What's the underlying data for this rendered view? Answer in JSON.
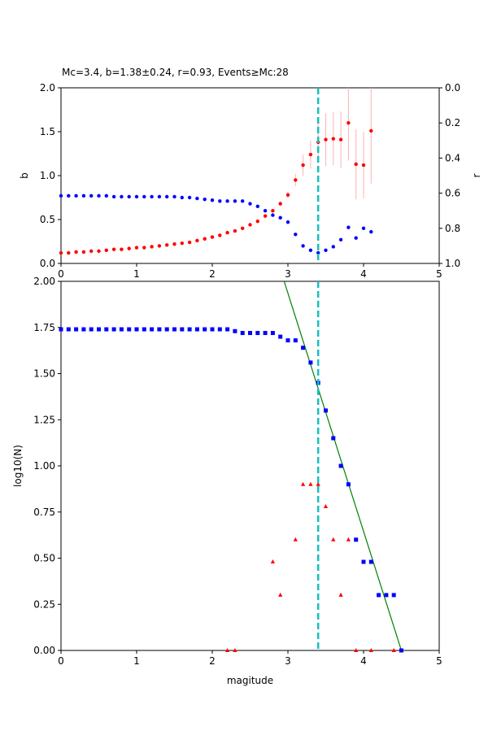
{
  "chart_data": [
    {
      "type": "scatter",
      "title": "Mc=3.4, b=1.38±0.24, r=0.93, Events≥Mc:28",
      "xlabel": "",
      "ylabel": "b",
      "ylabel_right": "r",
      "xlim": [
        0,
        5
      ],
      "ylim": [
        0,
        2
      ],
      "ylim_right": [
        1,
        0
      ],
      "x_ticks": [
        "0",
        "1",
        "2",
        "3",
        "4",
        "5"
      ],
      "y_ticks": [
        "0.0",
        "0.5",
        "1.0",
        "1.5",
        "2.0"
      ],
      "y_ticks_right": [
        "0.0",
        "0.2",
        "0.4",
        "0.6",
        "0.8",
        "1.0"
      ],
      "mc_line_x": 3.4,
      "series": [
        {
          "axis": "left",
          "color": "#ff0000",
          "marker": "circle",
          "x": [
            0.0,
            0.1,
            0.2,
            0.3,
            0.4,
            0.5,
            0.6,
            0.7,
            0.8,
            0.9,
            1.0,
            1.1,
            1.2,
            1.3,
            1.4,
            1.5,
            1.6,
            1.7,
            1.8,
            1.9,
            2.0,
            2.1,
            2.2,
            2.3,
            2.4,
            2.5,
            2.6,
            2.7,
            2.8,
            2.9,
            3.0,
            3.1,
            3.2,
            3.3,
            3.4,
            3.5,
            3.6,
            3.7,
            3.8,
            3.9,
            4.0,
            4.1
          ],
          "y": [
            0.12,
            0.12,
            0.13,
            0.13,
            0.14,
            0.14,
            0.15,
            0.16,
            0.16,
            0.17,
            0.18,
            0.18,
            0.19,
            0.2,
            0.21,
            0.22,
            0.23,
            0.24,
            0.26,
            0.28,
            0.3,
            0.32,
            0.35,
            0.37,
            0.4,
            0.44,
            0.48,
            0.54,
            0.6,
            0.68,
            0.78,
            0.95,
            1.12,
            1.24,
            1.38,
            1.41,
            1.42,
            1.41,
            1.6,
            1.13,
            1.12,
            1.51
          ],
          "err": [
            0,
            0,
            0,
            0,
            0,
            0,
            0,
            0,
            0,
            0,
            0,
            0,
            0,
            0,
            0,
            0,
            0,
            0,
            0,
            0,
            0,
            0,
            0,
            0,
            0,
            0,
            0,
            0,
            0.02,
            0.03,
            0.04,
            0.07,
            0.12,
            0.16,
            0.24,
            0.3,
            0.3,
            0.32,
            0.43,
            0.4,
            0.38,
            0.6
          ]
        },
        {
          "axis": "right",
          "color": "#0000ff",
          "marker": "circle",
          "x": [
            0.0,
            0.1,
            0.2,
            0.3,
            0.4,
            0.5,
            0.6,
            0.7,
            0.8,
            0.9,
            1.0,
            1.1,
            1.2,
            1.3,
            1.4,
            1.5,
            1.6,
            1.7,
            1.8,
            1.9,
            2.0,
            2.1,
            2.2,
            2.3,
            2.4,
            2.5,
            2.6,
            2.7,
            2.8,
            2.9,
            3.0,
            3.1,
            3.2,
            3.3,
            3.4,
            3.5,
            3.6,
            3.7,
            3.8,
            3.9,
            4.0,
            4.1
          ],
          "y": [
            0.615,
            0.615,
            0.615,
            0.615,
            0.615,
            0.615,
            0.615,
            0.62,
            0.62,
            0.62,
            0.62,
            0.62,
            0.62,
            0.62,
            0.62,
            0.62,
            0.625,
            0.625,
            0.63,
            0.635,
            0.64,
            0.645,
            0.645,
            0.645,
            0.645,
            0.66,
            0.675,
            0.7,
            0.725,
            0.74,
            0.765,
            0.835,
            0.9,
            0.925,
            0.94,
            0.925,
            0.905,
            0.865,
            0.795,
            0.855,
            0.8,
            0.82
          ]
        }
      ]
    },
    {
      "type": "scatter",
      "title": "",
      "xlabel": "magitude",
      "ylabel": "log10(N)",
      "xlim": [
        0,
        5
      ],
      "ylim": [
        0,
        2
      ],
      "x_ticks": [
        "0",
        "1",
        "2",
        "3",
        "4",
        "5"
      ],
      "y_ticks": [
        "0.00",
        "0.25",
        "0.50",
        "0.75",
        "1.00",
        "1.25",
        "1.50",
        "1.75",
        "2.00"
      ],
      "mc_line_x": 3.4,
      "fit_line": {
        "x": [
          2.95,
          4.5
        ],
        "y": [
          2.0,
          0.0
        ],
        "color": "#008000"
      },
      "series": [
        {
          "color": "#0000ff",
          "marker": "square",
          "x": [
            0.0,
            0.1,
            0.2,
            0.3,
            0.4,
            0.5,
            0.6,
            0.7,
            0.8,
            0.9,
            1.0,
            1.1,
            1.2,
            1.3,
            1.4,
            1.5,
            1.6,
            1.7,
            1.8,
            1.9,
            2.0,
            2.1,
            2.2,
            2.3,
            2.4,
            2.5,
            2.6,
            2.7,
            2.8,
            2.9,
            3.0,
            3.1,
            3.2,
            3.3,
            3.4,
            3.5,
            3.6,
            3.7,
            3.8,
            3.9,
            4.0,
            4.1,
            4.2,
            4.3,
            4.4,
            4.5
          ],
          "y": [
            1.74,
            1.74,
            1.74,
            1.74,
            1.74,
            1.74,
            1.74,
            1.74,
            1.74,
            1.74,
            1.74,
            1.74,
            1.74,
            1.74,
            1.74,
            1.74,
            1.74,
            1.74,
            1.74,
            1.74,
            1.74,
            1.74,
            1.74,
            1.73,
            1.72,
            1.72,
            1.72,
            1.72,
            1.72,
            1.7,
            1.68,
            1.68,
            1.64,
            1.56,
            1.45,
            1.3,
            1.15,
            1.0,
            0.9,
            0.6,
            0.48,
            0.48,
            0.3,
            0.3,
            0.3,
            0.0
          ]
        },
        {
          "color": "#ff0000",
          "marker": "triangle",
          "x": [
            2.2,
            2.3,
            2.8,
            2.9,
            3.1,
            3.2,
            3.3,
            3.4,
            3.5,
            3.6,
            3.7,
            3.8,
            3.9,
            4.1,
            4.4
          ],
          "y": [
            0.0,
            0.0,
            0.48,
            0.3,
            0.6,
            0.9,
            0.9,
            0.9,
            0.78,
            0.6,
            0.3,
            0.6,
            0.0,
            0.0,
            0.0
          ]
        }
      ]
    }
  ]
}
